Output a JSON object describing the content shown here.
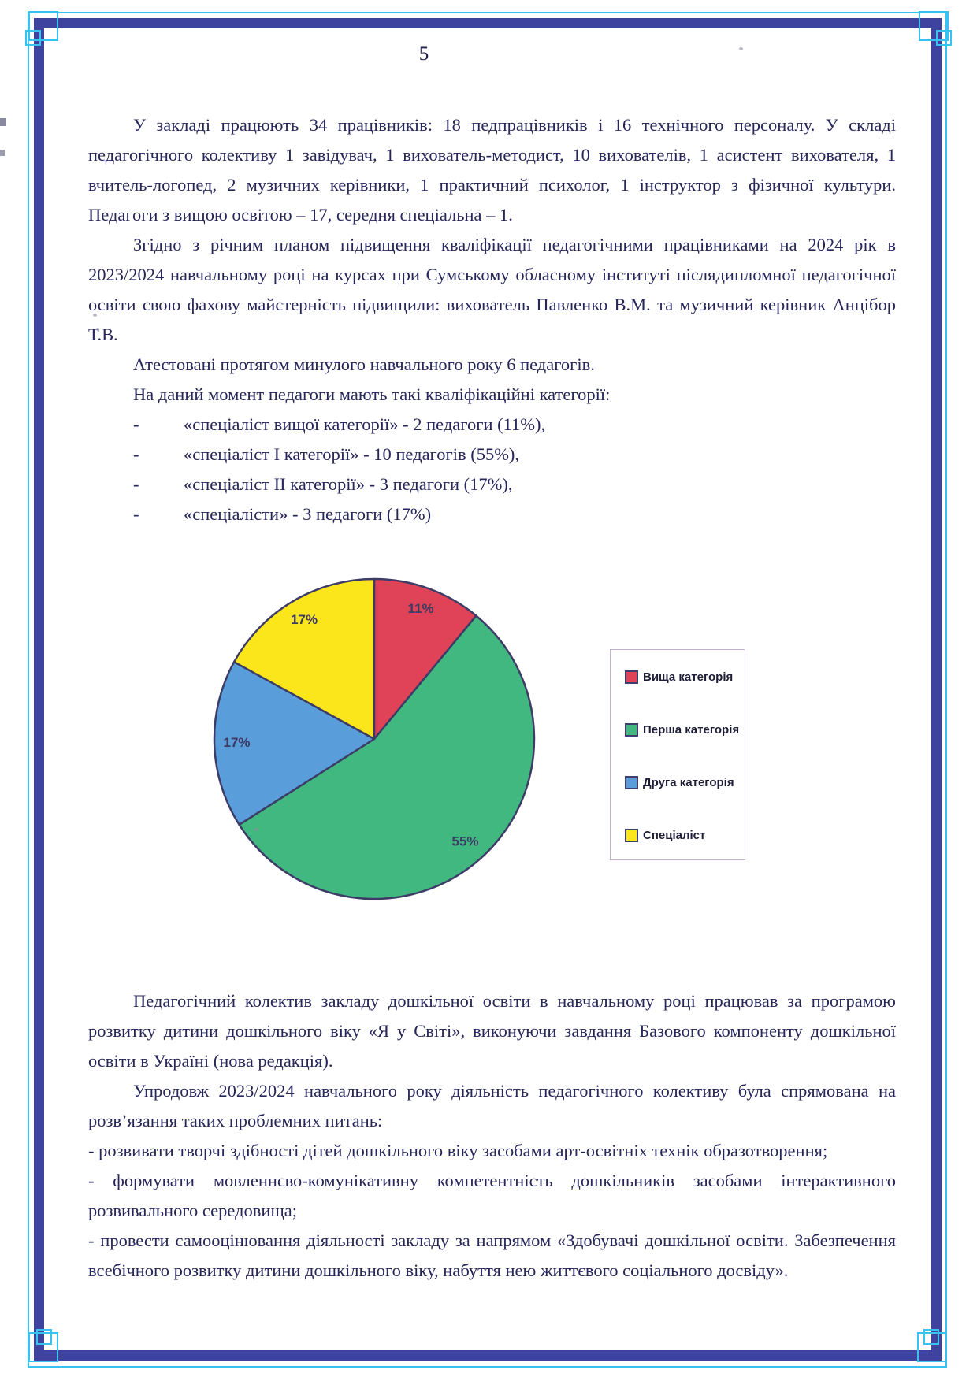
{
  "page": {
    "number": "5"
  },
  "colors": {
    "frame_dark_blue": "#3e43a0",
    "frame_cyan": "#38c2ef",
    "body_text": "#26265a"
  },
  "content": {
    "p1": "У закладі працюють 34 працівників: 18 педпрацівників і 16 технічного персоналу. У складі педагогічного колективу 1 завідувач, 1 вихователь-методист, 10 вихователів, 1 асистент вихователя, 1 вчитель-логопед, 2 музичних керівники, 1 практичний психолог, 1 інструктор з фізичної культури. Педагоги з вищою освітою – 17, середня спеціальна – 1.",
    "p2": "Згідно з річним планом підвищення кваліфікації педагогічними працівниками на 2024 рік в 2023/2024 навчальному році на курсах при Сумському обласному інституті післядипломної педагогічної освіти свою фахову майстерність підвищили: вихователь Павленко В.М. та музичний керівник Анцібор Т.В.",
    "p3": "Атестовані протягом минулого навчального року 6 педагогів.",
    "p4": "На даний момент педагоги мають такі кваліфікаційні категорії:",
    "qual_list": [
      {
        "marker": "-",
        "text": "«спеціаліст вищої категорії» - 2 педагоги (11%),"
      },
      {
        "marker": "-",
        "text": "«спеціаліст І категорії» - 10 педагогів (55%),"
      },
      {
        "marker": "-",
        "text": "«спеціаліст ІІ категорії» - 3 педагоги (17%),"
      },
      {
        "marker": "-",
        "text": "«спеціалісти» - 3 педагоги (17%)"
      }
    ],
    "p5": "Педагогічний колектив закладу дошкільної освіти в навчальному році працював за програмою розвитку дитини дошкільного віку «Я у Світі», виконуючи завдання Базового компоненту дошкільної освіти в Україні (нова редакція).",
    "p6": "Упродовж 2023/2024 навчального року діяльність педагогічного колективу була спрямована на розв’язання таких проблемних питань:",
    "p7": "- розвивати творчі здібності дітей дошкільного віку засобами арт-освітніх технік образотворення;",
    "p8": "- формувати мовленнєво-комунікативну компетентність дошкільників засобами інтерактивного розвивального середовища;",
    "p9": "- провести самооцінювання діяльності закладу за напрямом «Здобувачі дошкільної освіти. Забезпечення всебічного розвитку дитини дошкільного віку, набуття нею життєвого соціального досвіду»."
  },
  "chart_data": {
    "type": "pie",
    "title": "",
    "labels": [
      "Вища категорія",
      "Перша категорія",
      "Друга категорія",
      "Спеціаліст"
    ],
    "values": [
      11,
      55,
      17,
      17
    ],
    "value_labels": [
      "11%",
      "55%",
      "17%",
      "17%"
    ],
    "colors": [
      "#e04358",
      "#41b87f",
      "#5a9ddb",
      "#fbe51b"
    ],
    "slice_order": "clockwise-from-top",
    "legend_position": "right",
    "grid": false
  }
}
